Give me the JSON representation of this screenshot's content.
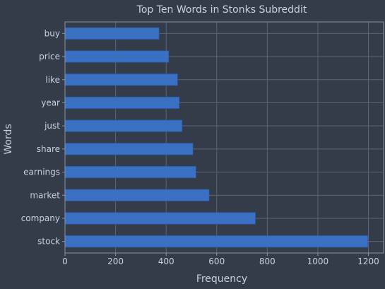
{
  "chart_data": {
    "type": "bar",
    "orientation": "horizontal",
    "title": "Top Ten Words in Stonks Subreddit",
    "xlabel": "Frequency",
    "ylabel": "Words",
    "categories": [
      "buy",
      "price",
      "like",
      "year",
      "just",
      "share",
      "earnings",
      "market",
      "company",
      "stock"
    ],
    "values": [
      372,
      410,
      445,
      452,
      463,
      506,
      518,
      570,
      753,
      1198
    ],
    "xlim": [
      0,
      1260
    ],
    "xticks": [
      0,
      200,
      400,
      600,
      800,
      1000,
      1200
    ],
    "grid": true,
    "legend": "none",
    "colors": {
      "background": "#343c4a",
      "bar": "#3a70c2",
      "bar_edge": "#2a5aa8",
      "grid": "#5a6478",
      "text": "#c9d1dc",
      "axis": "#8a94a6"
    }
  }
}
